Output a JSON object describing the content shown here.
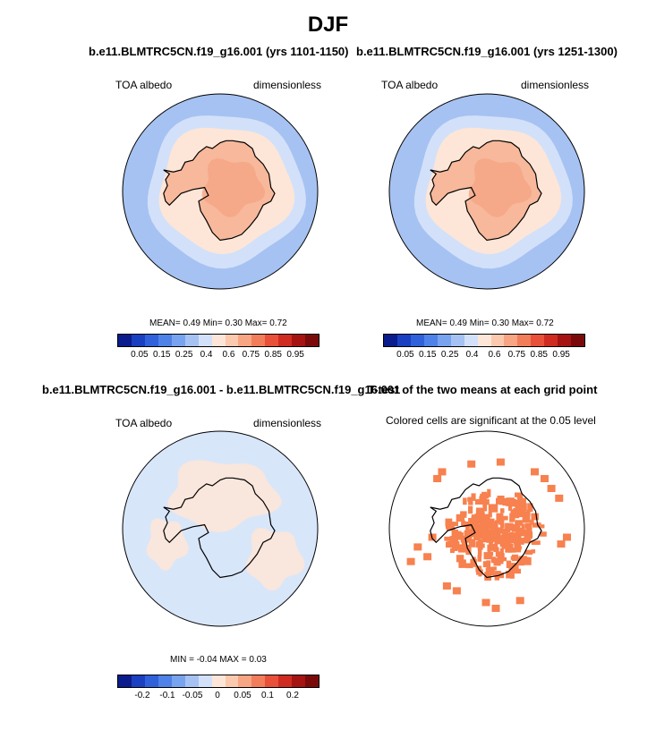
{
  "figure": {
    "title": "DJF"
  },
  "panels": {
    "p1": {
      "title": "b.e11.BLMTRC5CN.f19_g16.001 (yrs 1101-1150)",
      "left_label": "TOA albedo",
      "right_label": "dimensionless",
      "stats": "MEAN=  0.49  Min=  0.30  Max=  0.72"
    },
    "p2": {
      "title": "b.e11.BLMTRC5CN.f19_g16.001 (yrs 1251-1300)",
      "left_label": "TOA albedo",
      "right_label": "dimensionless",
      "stats": "MEAN=  0.49  Min=  0.30  Max=  0.72"
    },
    "p3": {
      "title": "b.e11.BLMTRC5CN.f19_g16.001 - b.e11.BLMTRC5CN.f19_g16.001",
      "left_label": "TOA albedo",
      "right_label": "dimensionless",
      "stats": "MIN =  -0.04 MAX =  0.03"
    },
    "p4": {
      "title": "T-test of the two means at each grid point",
      "subtitle": "Colored cells are significant at the 0.05 level"
    }
  },
  "colorbars": {
    "main_colors": [
      "#0b1c8c",
      "#1b3fc1",
      "#3061da",
      "#4e82e8",
      "#78a3ee",
      "#a6c2f2",
      "#d2e1f9",
      "#fde6d8",
      "#fbc9ae",
      "#f7a583",
      "#f27d5a",
      "#e8503a",
      "#cf2b21",
      "#a51313",
      "#7a0a0a"
    ],
    "main_ticks": [
      "0.05",
      "0.15",
      "0.25",
      "0.4",
      "0.6",
      "0.75",
      "0.85",
      "0.95"
    ],
    "diff_colors": [
      "#0b1c8c",
      "#1b3fc1",
      "#3061da",
      "#4e82e8",
      "#78a3ee",
      "#a6c2f2",
      "#d2e1f9",
      "#fde6d8",
      "#fbc9ae",
      "#f7a583",
      "#f27d5a",
      "#e8503a",
      "#cf2b21",
      "#a51313",
      "#7a0a0a"
    ],
    "diff_ticks": [
      "-0.2",
      "-0.1",
      "-0.05",
      "0",
      "0.05",
      "0.1",
      "0.2"
    ]
  },
  "colors": {
    "ocean_outer": "#a6c2f2",
    "ocean_inner": "#d2e1f9",
    "sea_ice": "#fde6d8",
    "continent": "#f7b89b",
    "continent_high": "#f4a585",
    "diff_bg": "#d8e6fa",
    "diff_pos": "#fde6d8",
    "ttest": "#f7814f"
  }
}
